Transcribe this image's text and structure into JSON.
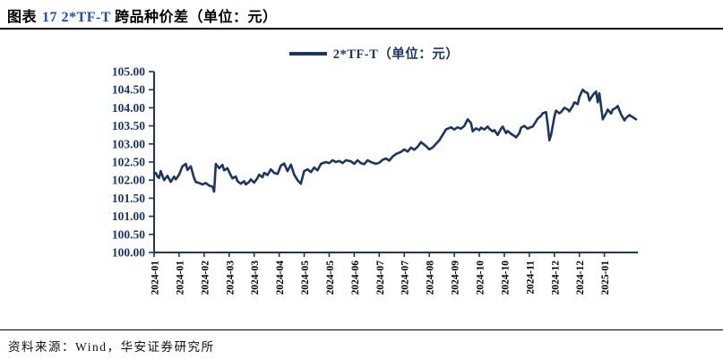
{
  "title": {
    "prefix": "图表",
    "highlight": "17 2*TF-T",
    "rest": "跨品种价差（单位：元）"
  },
  "legend": {
    "label": "2*TF-T（单位：元）"
  },
  "source": {
    "label": "资料来源：Wind，华安证券研究所"
  },
  "colors": {
    "navy": "#1B3665",
    "accent_blue": "#1B4ABE",
    "x_label": "#000000",
    "background": "#FFFFFF"
  },
  "chart_data": {
    "type": "line",
    "title": "2*TF-T 跨品种价差（单位：元）",
    "xlabel": "",
    "ylabel": "",
    "grid": false,
    "legend_position": "top-center",
    "ylim": [
      100.0,
      105.0
    ],
    "y_tick_step": 0.5,
    "y_tick_labels": [
      "105.00",
      "104.50",
      "104.00",
      "103.50",
      "103.00",
      "102.50",
      "102.00",
      "101.50",
      "101.00",
      "100.50",
      "100.00"
    ],
    "x_domain": [
      0,
      289
    ],
    "x_tick_interval": 15,
    "x_tick_labels": [
      "2024-01",
      "2024-01",
      "2024-02",
      "2024-03",
      "2024-03",
      "2024-04",
      "2024-05",
      "2024-05",
      "2024-06",
      "2024-07",
      "2024-07",
      "2024-08",
      "2024-09",
      "2024-10",
      "2024-10",
      "2024-11",
      "2024-12",
      "2024-12",
      "2025-01"
    ],
    "series": [
      {
        "name": "2*TF-T（单位：元）",
        "color": "#1B3665",
        "points": [
          [
            0,
            102.18
          ],
          [
            1,
            102.2
          ],
          [
            2,
            102.1
          ],
          [
            3,
            102.06
          ],
          [
            4,
            102.25
          ],
          [
            5,
            102.12
          ],
          [
            6,
            102.0
          ],
          [
            8,
            102.12
          ],
          [
            10,
            101.95
          ],
          [
            12,
            102.1
          ],
          [
            13,
            102.02
          ],
          [
            15,
            102.15
          ],
          [
            17,
            102.38
          ],
          [
            19,
            102.45
          ],
          [
            20,
            102.28
          ],
          [
            22,
            102.38
          ],
          [
            24,
            102.05
          ],
          [
            25,
            101.95
          ],
          [
            27,
            101.92
          ],
          [
            29,
            101.88
          ],
          [
            31,
            101.92
          ],
          [
            33,
            101.85
          ],
          [
            35,
            101.82
          ],
          [
            36,
            101.68
          ],
          [
            37,
            102.45
          ],
          [
            39,
            102.33
          ],
          [
            41,
            102.42
          ],
          [
            42,
            102.27
          ],
          [
            44,
            102.33
          ],
          [
            46,
            102.13
          ],
          [
            47,
            102.05
          ],
          [
            49,
            102.1
          ],
          [
            50,
            101.97
          ],
          [
            52,
            101.9
          ],
          [
            54,
            101.97
          ],
          [
            55,
            101.88
          ],
          [
            57,
            101.95
          ],
          [
            58,
            102.02
          ],
          [
            60,
            101.93
          ],
          [
            62,
            102.06
          ],
          [
            63,
            102.15
          ],
          [
            65,
            102.08
          ],
          [
            66,
            102.2
          ],
          [
            68,
            102.14
          ],
          [
            70,
            102.3
          ],
          [
            72,
            102.2
          ],
          [
            74,
            102.17
          ],
          [
            76,
            102.4
          ],
          [
            78,
            102.46
          ],
          [
            80,
            102.25
          ],
          [
            82,
            102.43
          ],
          [
            84,
            102.15
          ],
          [
            86,
            102.0
          ],
          [
            88,
            101.9
          ],
          [
            90,
            102.25
          ],
          [
            92,
            102.3
          ],
          [
            94,
            102.22
          ],
          [
            96,
            102.35
          ],
          [
            98,
            102.27
          ],
          [
            100,
            102.45
          ],
          [
            103,
            102.5
          ],
          [
            105,
            102.47
          ],
          [
            107,
            102.55
          ],
          [
            109,
            102.5
          ],
          [
            111,
            102.53
          ],
          [
            113,
            102.47
          ],
          [
            115,
            102.55
          ],
          [
            118,
            102.52
          ],
          [
            120,
            102.45
          ],
          [
            122,
            102.55
          ],
          [
            124,
            102.47
          ],
          [
            126,
            102.44
          ],
          [
            128,
            102.55
          ],
          [
            130,
            102.5
          ],
          [
            133,
            102.45
          ],
          [
            135,
            102.48
          ],
          [
            137,
            102.56
          ],
          [
            139,
            102.6
          ],
          [
            141,
            102.54
          ],
          [
            143,
            102.65
          ],
          [
            145,
            102.72
          ],
          [
            148,
            102.78
          ],
          [
            150,
            102.85
          ],
          [
            152,
            102.79
          ],
          [
            154,
            102.9
          ],
          [
            156,
            102.84
          ],
          [
            158,
            102.92
          ],
          [
            160,
            103.05
          ],
          [
            163,
            102.94
          ],
          [
            165,
            102.85
          ],
          [
            167,
            102.9
          ],
          [
            169,
            103.0
          ],
          [
            171,
            103.1
          ],
          [
            173,
            103.25
          ],
          [
            175,
            103.4
          ],
          [
            178,
            103.46
          ],
          [
            180,
            103.4
          ],
          [
            182,
            103.46
          ],
          [
            184,
            103.42
          ],
          [
            186,
            103.5
          ],
          [
            188,
            103.68
          ],
          [
            190,
            103.58
          ],
          [
            191,
            103.35
          ],
          [
            193,
            103.43
          ],
          [
            195,
            103.38
          ],
          [
            196,
            103.45
          ],
          [
            198,
            103.4
          ],
          [
            200,
            103.48
          ],
          [
            201,
            103.42
          ],
          [
            203,
            103.35
          ],
          [
            204,
            103.38
          ],
          [
            206,
            103.25
          ],
          [
            208,
            103.42
          ],
          [
            209,
            103.48
          ],
          [
            211,
            103.3
          ],
          [
            212,
            103.36
          ],
          [
            214,
            103.28
          ],
          [
            216,
            103.22
          ],
          [
            217,
            103.18
          ],
          [
            219,
            103.3
          ],
          [
            220,
            103.45
          ],
          [
            222,
            103.5
          ],
          [
            224,
            103.42
          ],
          [
            225,
            103.45
          ],
          [
            227,
            103.48
          ],
          [
            228,
            103.55
          ],
          [
            230,
            103.7
          ],
          [
            232,
            103.78
          ],
          [
            233,
            103.85
          ],
          [
            235,
            103.88
          ],
          [
            236,
            103.55
          ],
          [
            237,
            103.1
          ],
          [
            238,
            103.25
          ],
          [
            240,
            103.75
          ],
          [
            241,
            103.92
          ],
          [
            243,
            103.85
          ],
          [
            244,
            103.88
          ],
          [
            246,
            104.0
          ],
          [
            248,
            103.95
          ],
          [
            249,
            103.9
          ],
          [
            251,
            104.05
          ],
          [
            252,
            104.15
          ],
          [
            254,
            104.1
          ],
          [
            255,
            104.3
          ],
          [
            257,
            104.5
          ],
          [
            258,
            104.45
          ],
          [
            260,
            104.4
          ],
          [
            261,
            104.2
          ],
          [
            263,
            104.35
          ],
          [
            265,
            104.45
          ],
          [
            266,
            104.15
          ],
          [
            267,
            104.4
          ],
          [
            269,
            103.68
          ],
          [
            271,
            103.85
          ],
          [
            272,
            103.95
          ],
          [
            274,
            103.84
          ],
          [
            275,
            103.95
          ],
          [
            277,
            104.0
          ],
          [
            278,
            104.05
          ],
          [
            280,
            103.82
          ],
          [
            282,
            103.65
          ],
          [
            283,
            103.72
          ],
          [
            285,
            103.8
          ],
          [
            287,
            103.74
          ],
          [
            289,
            103.68
          ]
        ]
      }
    ]
  }
}
